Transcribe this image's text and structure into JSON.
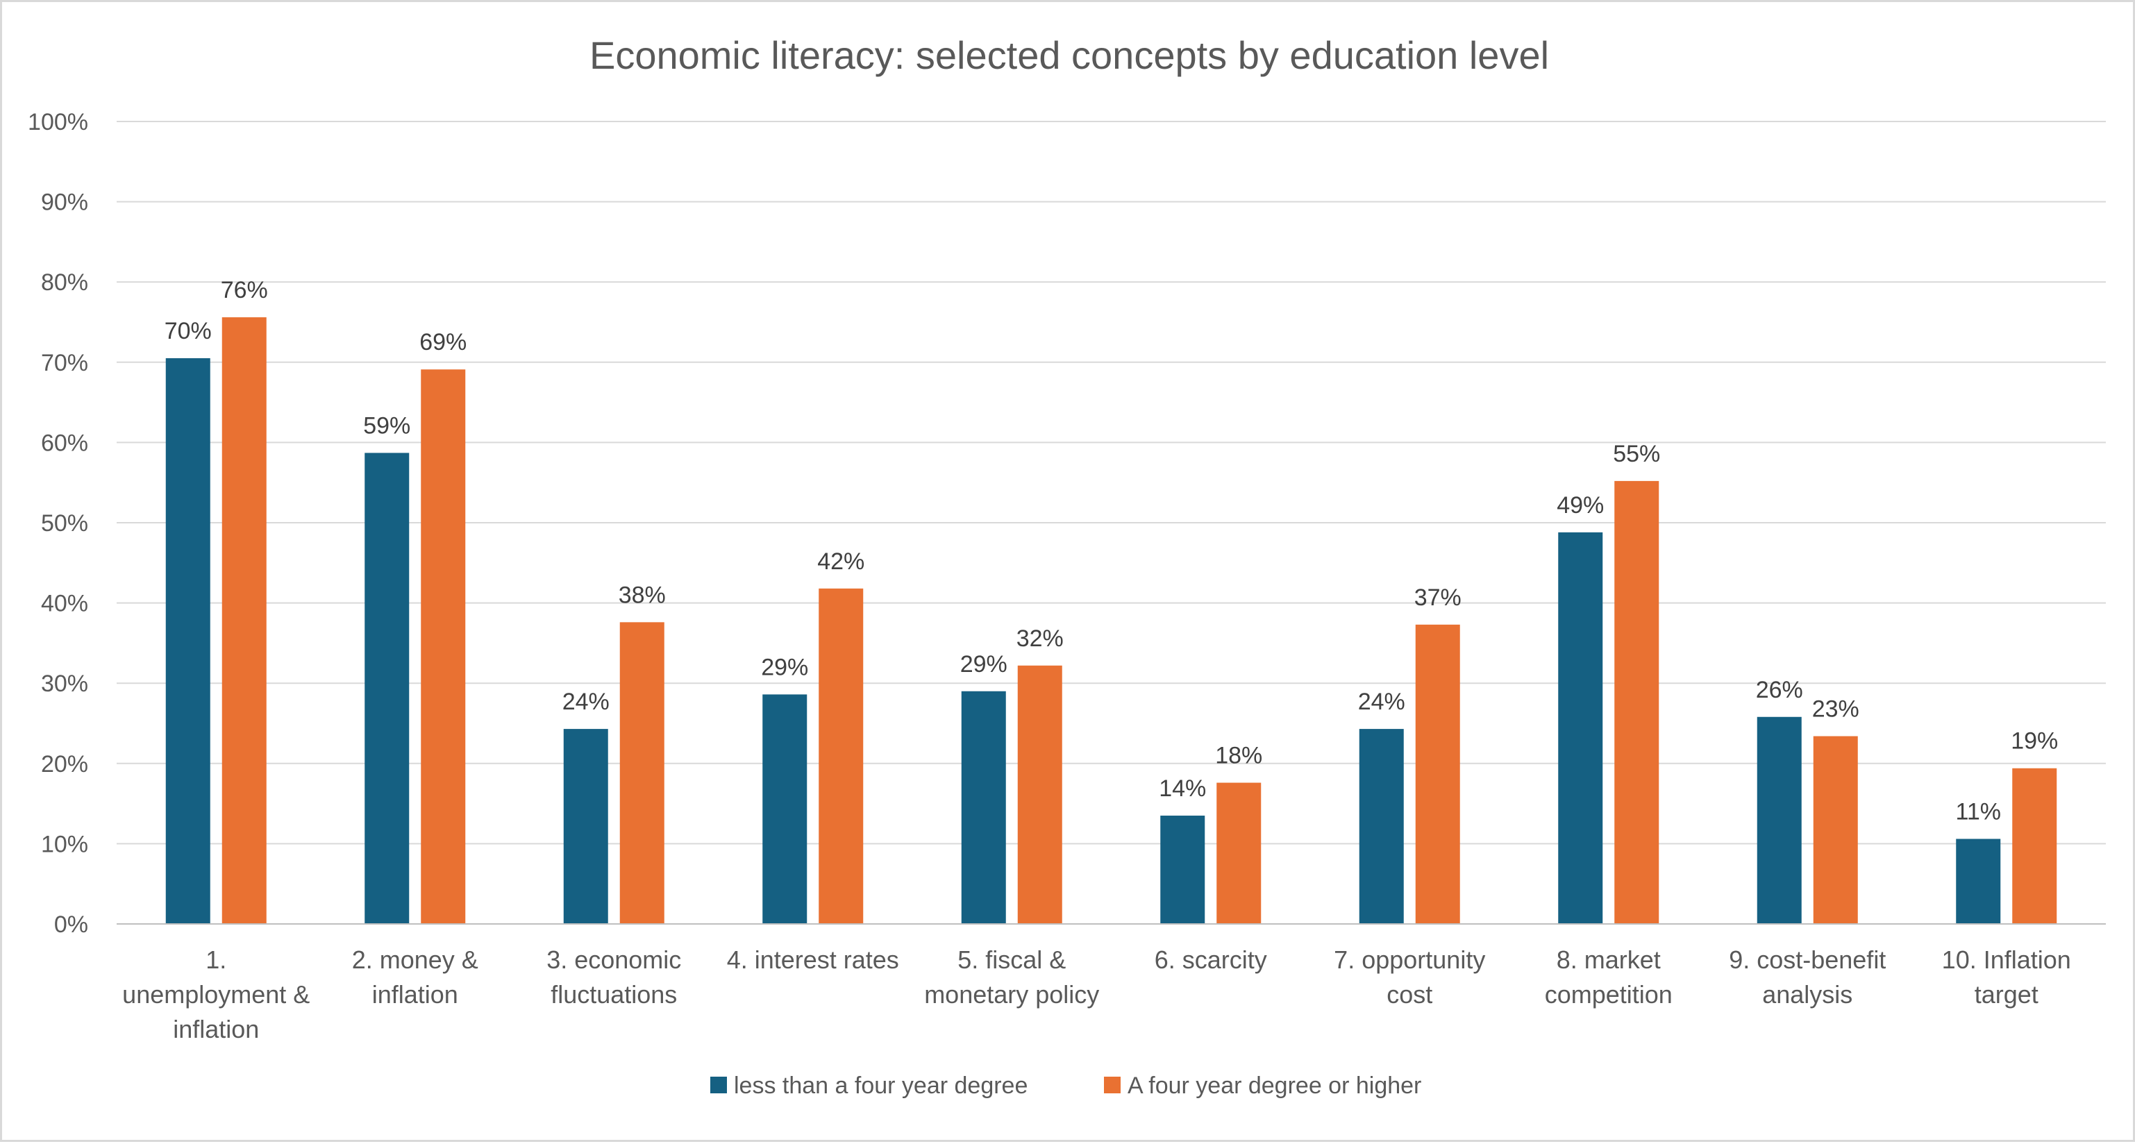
{
  "chart_data": {
    "type": "bar",
    "title": "Economic literacy: selected concepts by education level",
    "xlabel": "",
    "ylabel": "",
    "ylim": [
      0,
      100
    ],
    "y_ticks": [
      "0%",
      "10%",
      "20%",
      "30%",
      "40%",
      "50%",
      "60%",
      "70%",
      "80%",
      "90%",
      "100%"
    ],
    "grid": true,
    "legend_position": "bottom",
    "categories": [
      [
        "1.",
        "unemployment &",
        "inflation"
      ],
      [
        "2. money &",
        "inflation"
      ],
      [
        "3. economic",
        "fluctuations"
      ],
      [
        "4. interest rates"
      ],
      [
        "5.  fiscal &",
        "monetary policy"
      ],
      [
        "6. scarcity"
      ],
      [
        "7. opportunity",
        "cost"
      ],
      [
        "8. market",
        "competition"
      ],
      [
        "9. cost-benefit",
        "analysis"
      ],
      [
        "10. Inflation",
        "target"
      ]
    ],
    "series": [
      {
        "name": "less than a four  year degree",
        "color": "#156082",
        "values": [
          70.5,
          58.7,
          24.3,
          28.6,
          29.0,
          13.5,
          24.3,
          48.8,
          25.8,
          10.6
        ],
        "labels": [
          "70%",
          "59%",
          "24%",
          "29%",
          "29%",
          "14%",
          "24%",
          "49%",
          "26%",
          "11%"
        ]
      },
      {
        "name": "A four year degree or higher",
        "color": "#E97132",
        "values": [
          75.6,
          69.1,
          37.6,
          41.8,
          32.2,
          17.6,
          37.3,
          55.2,
          23.4,
          19.4
        ],
        "labels": [
          "76%",
          "69%",
          "38%",
          "42%",
          "32%",
          "18%",
          "37%",
          "55%",
          "23%",
          "19%"
        ]
      }
    ]
  }
}
